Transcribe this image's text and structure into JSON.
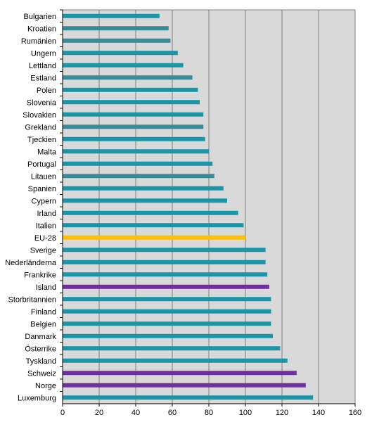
{
  "chart_data": {
    "type": "bar",
    "orientation": "horizontal",
    "categories": [
      "Bulgarien",
      "Kroatien",
      "Rumänien",
      "Ungern",
      "Lettland",
      "Estland",
      "Polen",
      "Slovenia",
      "Slovakien",
      "Grekland",
      "Tjeckien",
      "Malta",
      "Portugal",
      "Litauen",
      "Spanien",
      "Cypern",
      "Irland",
      "Italien",
      "EU-28",
      "Sverige",
      "Nederländerna",
      "Frankrike",
      "Island",
      "Storbritannien",
      "Finland",
      "Belgien",
      "Danmark",
      "Österrike",
      "Tyskland",
      "Schweiz",
      "Norge",
      "Luxemburg"
    ],
    "values": [
      53,
      58,
      59,
      63,
      66,
      71,
      74,
      75,
      77,
      77,
      78,
      80,
      82,
      83,
      88,
      90,
      96,
      99,
      100,
      111,
      111,
      112,
      113,
      114,
      114,
      114,
      115,
      119,
      123,
      128,
      133,
      137
    ],
    "bar_colors": [
      "#1a96a8",
      "#3a8a99",
      "#3a8a99",
      "#1a96a8",
      "#1a96a8",
      "#3a8a99",
      "#1a96a8",
      "#1a96a8",
      "#1a96a8",
      "#3a8a99",
      "#1a96a8",
      "#1a96a8",
      "#1a96a8",
      "#3a8a99",
      "#1a96a8",
      "#1a96a8",
      "#1a96a8",
      "#1a96a8",
      "#ffc000",
      "#1a96a8",
      "#1a96a8",
      "#1a96a8",
      "#7030a0",
      "#1a96a8",
      "#1a96a8",
      "#1a96a8",
      "#1a96a8",
      "#1a96a8",
      "#1a96a8",
      "#7030a0",
      "#7030a0",
      "#1a96a8"
    ],
    "xlim": [
      0,
      160
    ],
    "xticks": [
      0,
      20,
      40,
      60,
      80,
      100,
      120,
      140,
      160
    ],
    "grid": true,
    "title": "",
    "xlabel": "",
    "ylabel": "",
    "plot_background": "#d9d9d9",
    "gridline_color": "#808080"
  }
}
